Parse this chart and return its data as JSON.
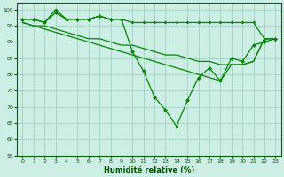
{
  "xlabel": "Humidité relative (%)",
  "xlim": [
    -0.5,
    23.5
  ],
  "ylim": [
    55,
    102
  ],
  "yticks": [
    55,
    60,
    65,
    70,
    75,
    80,
    85,
    90,
    95,
    100
  ],
  "xticks": [
    0,
    1,
    2,
    3,
    4,
    5,
    6,
    7,
    8,
    9,
    10,
    11,
    12,
    13,
    14,
    15,
    16,
    17,
    18,
    19,
    20,
    21,
    22,
    23
  ],
  "bg_color": "#cceee4",
  "line_color": "#008800",
  "grid_color": "#99ccbb",
  "line_top": [
    97,
    97,
    96,
    100,
    97,
    97,
    97,
    98,
    97,
    97,
    96,
    96,
    96,
    96,
    96,
    96,
    96,
    96,
    96,
    96,
    96,
    96,
    91,
    91
  ],
  "line_dip": [
    97,
    97,
    96,
    99,
    97,
    97,
    97,
    98,
    97,
    97,
    87,
    81,
    73,
    69,
    64,
    72,
    79,
    82,
    78,
    85,
    84,
    89,
    90,
    91
  ],
  "line_mid": [
    96,
    95,
    95,
    94,
    93,
    92,
    91,
    91,
    90,
    89,
    89,
    88,
    87,
    86,
    86,
    85,
    84,
    84,
    83,
    83,
    83,
    84,
    91,
    91
  ],
  "line_low": [
    96,
    95,
    94,
    93,
    92,
    91,
    90,
    89,
    88,
    87,
    86,
    85,
    84,
    83,
    82,
    81,
    80,
    79,
    78,
    83,
    83,
    84,
    91,
    91
  ]
}
